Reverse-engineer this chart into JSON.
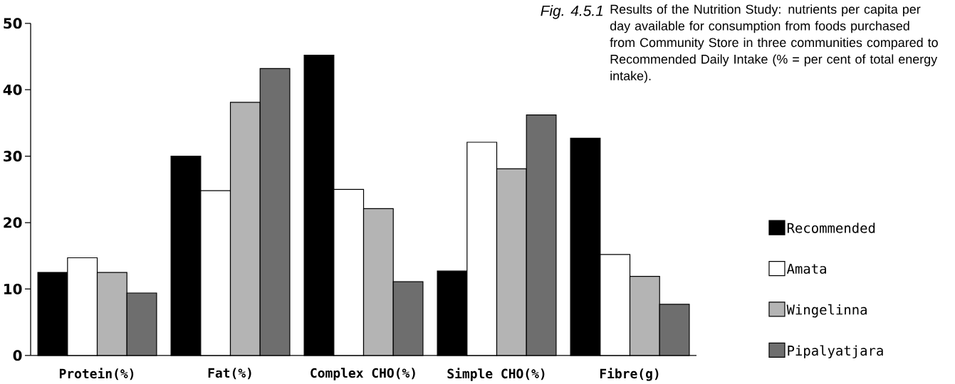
{
  "chart_data": {
    "type": "bar",
    "title": "Fig. 4.5.1",
    "subtitle": "Results of the Nutrition Study: nutrients per capita per day available for consumption from foods purchased from Community Store in three communities compared to Recommended Daily Intake (% = per cent of total energy intake).",
    "categories": [
      "Protein(%)",
      "Fat(%)",
      "Complex CHO(%)",
      "Simple CHO(%)",
      "Fibre(g)"
    ],
    "series": [
      {
        "name": "Recommended",
        "color": "#000000",
        "values": [
          12.5,
          30.0,
          45.2,
          12.7,
          32.7
        ]
      },
      {
        "name": "Amata",
        "color": "#ffffff",
        "values": [
          14.7,
          24.8,
          25.0,
          32.1,
          15.2
        ]
      },
      {
        "name": "Wingelinna",
        "color": "#b4b4b4",
        "values": [
          12.5,
          38.1,
          22.1,
          28.1,
          11.9
        ]
      },
      {
        "name": "Pipalyatjara",
        "color": "#6e6e6e",
        "values": [
          9.4,
          43.2,
          11.1,
          36.2,
          7.7
        ]
      }
    ],
    "ylim": [
      0,
      50
    ],
    "yticks": [
      0,
      10,
      20,
      30,
      40,
      50
    ],
    "legend": "right"
  }
}
